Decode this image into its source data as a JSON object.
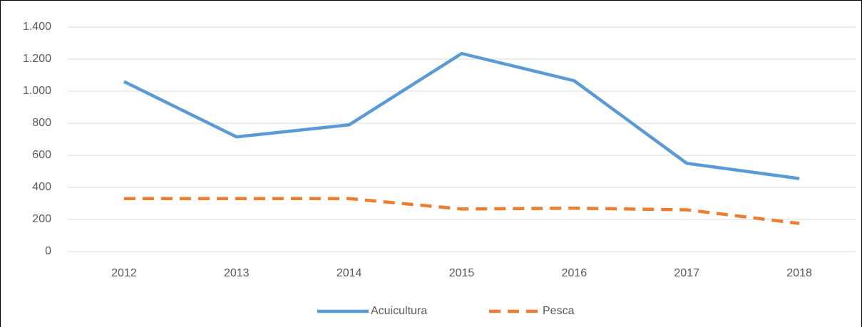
{
  "chart_data": {
    "type": "line",
    "categories": [
      "2012",
      "2013",
      "2014",
      "2015",
      "2016",
      "2017",
      "2018"
    ],
    "series": [
      {
        "name": "Acuicultura",
        "color": "#5b9bd5",
        "dashed": false,
        "values": [
          1060,
          715,
          790,
          1235,
          1065,
          550,
          455
        ]
      },
      {
        "name": "Pesca",
        "color": "#ed7d31",
        "dashed": true,
        "values": [
          330,
          330,
          330,
          265,
          270,
          260,
          175
        ]
      }
    ],
    "ylim": [
      0,
      1400
    ],
    "yticks": [
      0,
      200,
      400,
      600,
      800,
      {
        "value": 1000,
        "label": "1.000"
      },
      {
        "value": 1200,
        "label": "1.200"
      },
      {
        "value": 1400,
        "label": "1.400"
      }
    ],
    "grid": true,
    "legend": "bottom"
  }
}
